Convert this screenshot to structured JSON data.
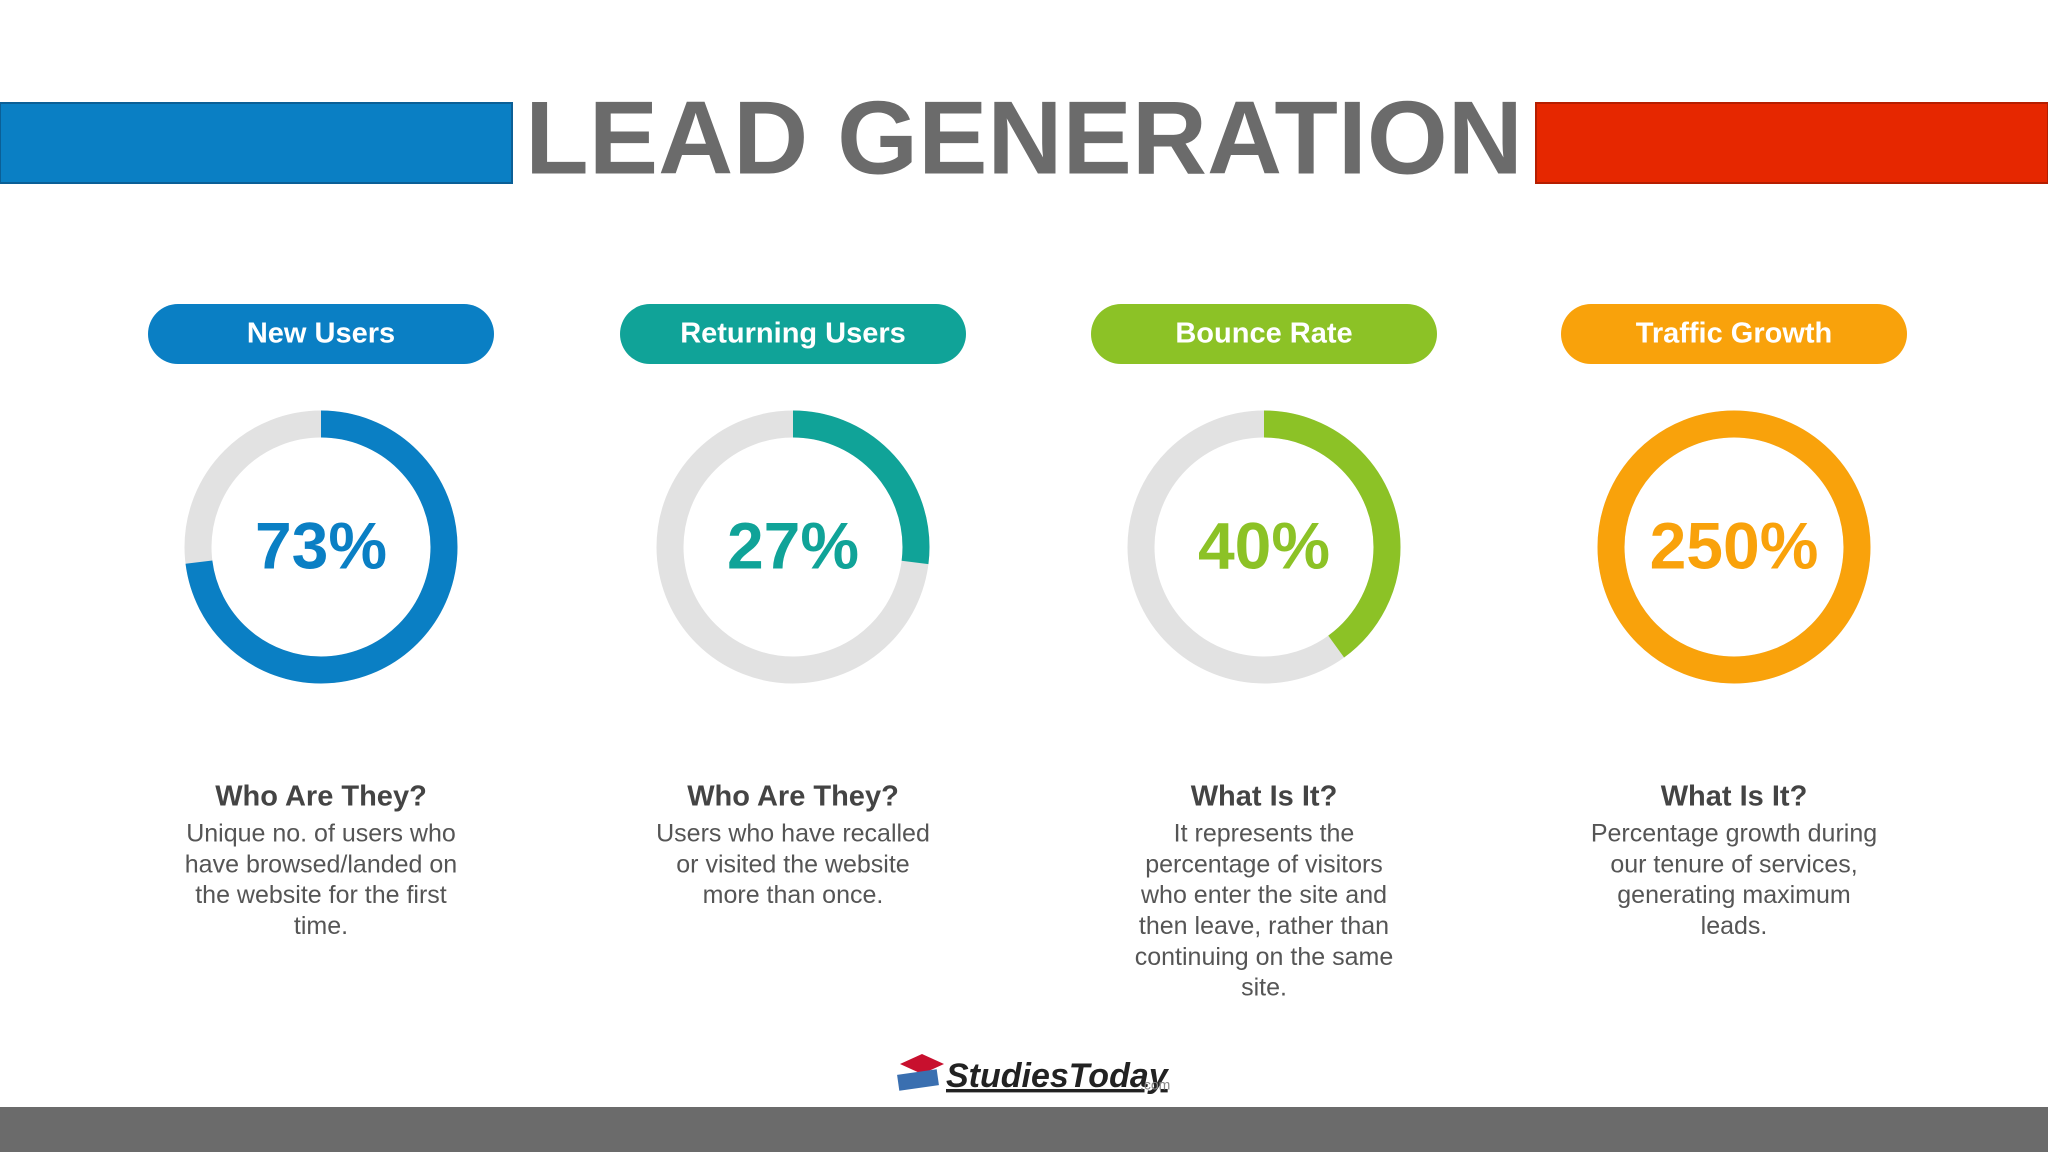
{
  "title": "LEAD GENERATION",
  "chart_data": [
    {
      "type": "donut",
      "title": "New Users",
      "values": [
        73
      ],
      "value_labels": [
        "73%"
      ],
      "color": "#0a7fc4",
      "heading": "Who Are They?",
      "description": [
        "Unique no. of users who",
        "have browsed/landed on",
        "the website for the first",
        "time."
      ]
    },
    {
      "type": "donut",
      "title": "Returning Users",
      "values": [
        27
      ],
      "value_labels": [
        "27%"
      ],
      "color": "#10a398",
      "heading": "Who Are They?",
      "description": [
        "Users who have recalled",
        "or visited the website",
        "more than once."
      ]
    },
    {
      "type": "donut",
      "title": "Bounce Rate",
      "values": [
        40
      ],
      "value_labels": [
        "40%"
      ],
      "color": "#8cc226",
      "heading": "What Is It?",
      "description": [
        "It represents the",
        "percentage of visitors",
        "who enter the site and",
        "then leave, rather than",
        "continuing on the same",
        "site."
      ]
    },
    {
      "type": "donut",
      "title": "Traffic Growth",
      "values": [
        250
      ],
      "value_labels": [
        "250%"
      ],
      "color": "#f9a20b",
      "heading": "What Is It?",
      "description": [
        "Percentage growth during",
        "our tenure of services,",
        "generating maximum",
        "leads."
      ]
    }
  ],
  "logo": {
    "name": "StudiesToday",
    "suffix": ".com"
  }
}
